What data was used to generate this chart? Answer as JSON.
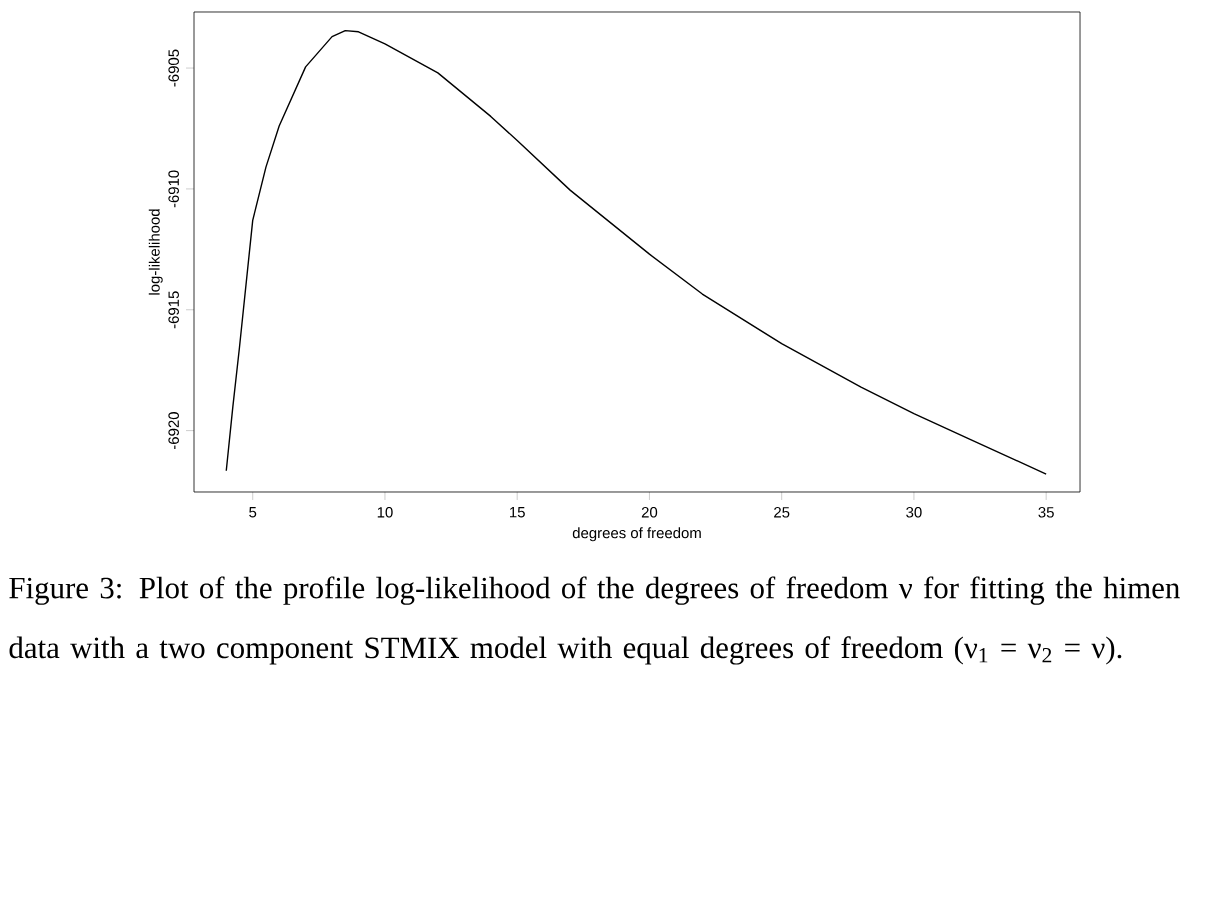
{
  "chart_data": {
    "type": "line",
    "xlabel": "degrees of freedom",
    "ylabel": "log-likelihood",
    "x": [
      4,
      4.25,
      4.5,
      5,
      5.5,
      6,
      7,
      8,
      8.5,
      9,
      10,
      12,
      14,
      15,
      17,
      20,
      22,
      25,
      28,
      30,
      32,
      35
    ],
    "values": [
      -6921.66,
      -6919.0,
      -6916.55,
      -6911.3,
      -6909.1,
      -6907.4,
      -6904.95,
      -6903.7,
      -6903.45,
      -6903.5,
      -6904.0,
      -6905.2,
      -6907.0,
      -6908.0,
      -6910.05,
      -6912.7,
      -6914.35,
      -6916.4,
      -6918.2,
      -6919.3,
      -6920.3,
      -6921.8
    ],
    "color": "#000000",
    "xlim": [
      2.78,
      36.28
    ],
    "ylim": [
      -6922.54,
      -6902.68
    ],
    "xticks": [
      5,
      10,
      15,
      20,
      25,
      30,
      35
    ],
    "yticks": [
      -6920,
      -6915,
      -6910,
      -6905
    ],
    "annotations": [
      "Figure 3: Plot of the profile log-likelihood of the degrees of freedom ν for fitting the himen data with a two component STMIX model with equal degrees of freedom (ν$_{1}$ = ν$_{2}$ = ν)."
    ]
  }
}
